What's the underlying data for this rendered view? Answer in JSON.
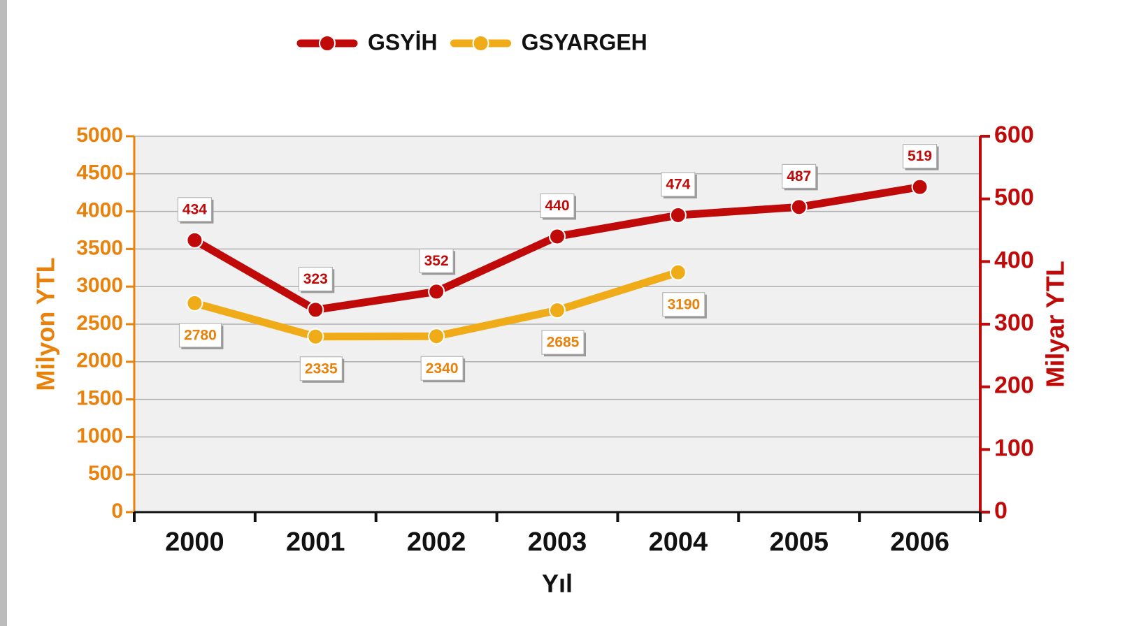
{
  "chart_data": {
    "type": "line",
    "categories": [
      "2000",
      "2001",
      "2002",
      "2003",
      "2004",
      "2005",
      "2006"
    ],
    "series": [
      {
        "name": "GSYİH",
        "color": "#c00a0a",
        "axis": "y2",
        "values": [
          434,
          323,
          352,
          440,
          474,
          487,
          519
        ]
      },
      {
        "name": "GSYARGEH",
        "color": "#f0ac18",
        "values": [
          2780,
          2335,
          2340,
          2685,
          3190,
          null,
          null
        ]
      }
    ],
    "ylabel": "Milyon YTL",
    "y2label": "Milyar YTL",
    "xlabel": "Yıl",
    "ylim": [
      0,
      5000
    ],
    "yticks": [
      0,
      500,
      1000,
      1500,
      2000,
      2500,
      3000,
      3500,
      4000,
      4500,
      5000
    ],
    "y2lim": [
      0,
      600
    ],
    "y2ticks": [
      0,
      100,
      200,
      300,
      400,
      500,
      600
    ],
    "grid": true,
    "legend": "top"
  }
}
